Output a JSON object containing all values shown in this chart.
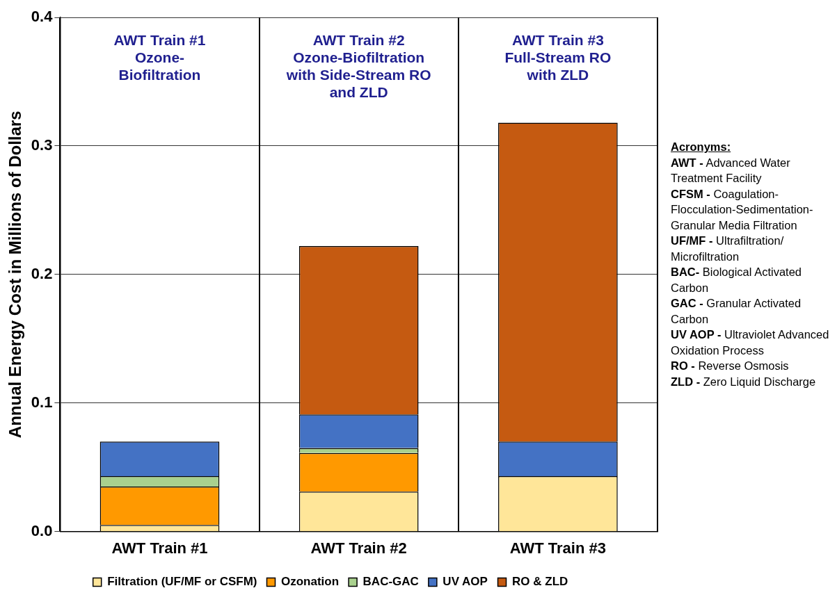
{
  "chart_data": {
    "type": "bar",
    "stacked": true,
    "ylabel": "Annual Energy Cost in Millions of Dollars",
    "categories": [
      "AWT Train #1",
      "AWT Train #2",
      "AWT Train #3"
    ],
    "series": [
      {
        "name": "Filtration (UF/MF or CSFM)",
        "color": "#ffe699",
        "values": [
          0.005,
          0.031,
          0.043
        ]
      },
      {
        "name": "Ozonation",
        "color": "#ff9900",
        "values": [
          0.03,
          0.03,
          0
        ]
      },
      {
        "name": "BAC-GAC",
        "color": "#a9d18e",
        "values": [
          0.008,
          0.004,
          0
        ]
      },
      {
        "name": "UV AOP",
        "color": "#4472c4",
        "values": [
          0.027,
          0.026,
          0.027
        ]
      },
      {
        "name": "RO & ZLD",
        "color": "#c55a11",
        "values": [
          0,
          0.131,
          0.248
        ]
      }
    ],
    "ylim": [
      0,
      0.4
    ],
    "yticks": [
      {
        "value": 0,
        "label": "0.0"
      },
      0.1,
      0.2,
      0.3,
      0.4
    ],
    "grid": true,
    "legend": "bottom",
    "annotations": [
      "AWT Train #1\nOzone-\nBiofiltration",
      "AWT Train #2\nOzone-Biofiltration\nwith Side-Stream RO\nand ZLD",
      "AWT Train #3\nFull-Stream RO\nwith ZLD",
      "Acronyms:\nAWT - Advanced Water Treatment Facility\nCFSM - Coagulation-Flocculation-Sedimentation-Granular Media Filtration\nUF/MF - Ultrafiltration/ Microfiltration\nBAC- Biological Activated Carbon\nGAC - Granular Activated Carbon\nUV AOP - Ultraviolet Advanced Oxidation Process\nRO - Reverse Osmosis\nZLD - Zero Liquid Discharge"
    ]
  }
}
